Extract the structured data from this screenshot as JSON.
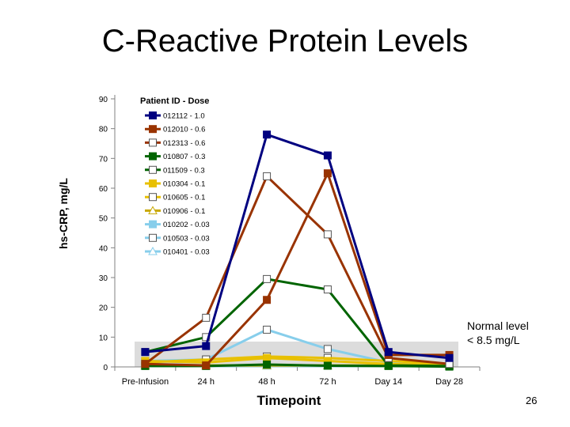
{
  "title": "C-Reactive Protein Levels",
  "page_number": "26",
  "annotation": {
    "line1": "Normal level",
    "line2": "< 8.5 mg/L"
  },
  "chart_data": {
    "type": "line",
    "title": "C-Reactive Protein Levels",
    "xlabel": "Timepoint",
    "ylabel": "hs-CRP, mg/L",
    "ylim": [
      0,
      90
    ],
    "yticks": [
      0,
      10,
      20,
      30,
      40,
      50,
      60,
      70,
      80,
      90
    ],
    "categories": [
      "Pre-Infusion",
      "24 h",
      "48 h",
      "72 h",
      "Day 14",
      "Day 28"
    ],
    "normal_band": {
      "from": 0,
      "to": 8.5,
      "label": "Normal level < 8.5 mg/L",
      "color": "#dcdcdc"
    },
    "legend_title": "Patient ID - Dose",
    "series": [
      {
        "name": "012112 - 1.0",
        "color": "#000080",
        "marker": "square",
        "filled": true,
        "values": [
          5,
          7,
          78,
          71,
          5,
          3
        ]
      },
      {
        "name": "012010 - 0.6",
        "color": "#993300",
        "marker": "square",
        "filled": true,
        "values": [
          1,
          0.5,
          22.5,
          65,
          4,
          4
        ]
      },
      {
        "name": "012313 - 0.6",
        "color": "#993300",
        "marker": "square",
        "filled": false,
        "values": [
          1,
          16.5,
          64,
          44.5,
          3,
          1
        ]
      },
      {
        "name": "010807 - 0.3",
        "color": "#006400",
        "marker": "square",
        "filled": true,
        "values": [
          0.3,
          0.3,
          0.8,
          0.4,
          0.3,
          0.1
        ]
      },
      {
        "name": "011509 - 0.3",
        "color": "#006400",
        "marker": "square",
        "filled": false,
        "values": [
          5,
          10,
          29.5,
          26,
          0.5,
          0.3
        ]
      },
      {
        "name": "010304 - 0.1",
        "color": "#e8c000",
        "marker": "square",
        "filled": true,
        "values": [
          2,
          1.5,
          3,
          2,
          1,
          0.5
        ]
      },
      {
        "name": "010605 - 0.1",
        "color": "#e8c000",
        "marker": "square",
        "filled": false,
        "values": [
          1.5,
          2.5,
          3.5,
          3,
          2,
          1
        ]
      },
      {
        "name": "010906 - 0.1",
        "color": "#c8a800",
        "marker": "triangle",
        "filled": false,
        "values": [
          0.5,
          0.5,
          0.5,
          0.5,
          0.5,
          0.5
        ]
      },
      {
        "name": "010202 - 0.03",
        "color": "#87ceeb",
        "marker": "square",
        "filled": true,
        "values": [
          1,
          0.5,
          0.5,
          0.5,
          0.5,
          0.5
        ]
      },
      {
        "name": "010503 - 0.03",
        "color": "#87ceeb",
        "marker": "square",
        "filled": false,
        "values": [
          2,
          2.5,
          12.5,
          6,
          1.5,
          0.5
        ]
      },
      {
        "name": "010401 - 0.03",
        "color": "#87ceeb",
        "marker": "triangle",
        "filled": false,
        "values": [
          0.3,
          0.3,
          0.3,
          0.3,
          0.3,
          0.3
        ]
      }
    ]
  }
}
